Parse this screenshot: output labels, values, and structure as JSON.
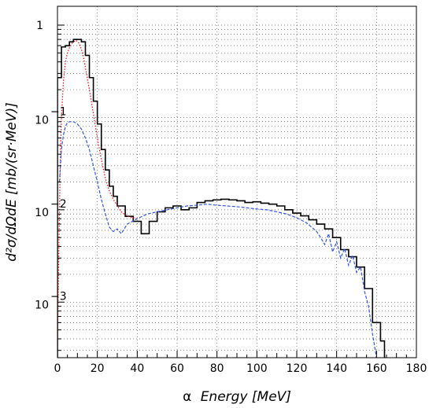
{
  "chart_data": {
    "type": "line",
    "title": "",
    "xlabel_symbol": "α",
    "xlabel_text": "Energy [MeV]",
    "ylabel": "d²σ/dΩdE [mb/(sr·MeV)]",
    "xlim": [
      0,
      180
    ],
    "ylim": [
      0.00025,
      1.6
    ],
    "yscale": "log",
    "grid": true,
    "x_ticks": [
      0,
      20,
      40,
      60,
      80,
      100,
      120,
      140,
      160,
      180
    ],
    "x_tick_labels": [
      "0",
      "20",
      "40",
      "60",
      "80",
      "100",
      "120",
      "140",
      "160",
      "180"
    ],
    "y_tick_labels": [
      {
        "value": 1,
        "base": "1",
        "exp": ""
      },
      {
        "value": 0.1,
        "base": "10",
        "exp": "−1"
      },
      {
        "value": 0.01,
        "base": "10",
        "exp": "−2"
      },
      {
        "value": 0.001,
        "base": "10",
        "exp": "−3"
      }
    ],
    "series": [
      {
        "style": "histogram",
        "color": "#000000",
        "edges": [
          0,
          2,
          4,
          6,
          8,
          10,
          12,
          14,
          16,
          18,
          20,
          22,
          24,
          26,
          28,
          30,
          34,
          38,
          42,
          46,
          50,
          54,
          58,
          62,
          66,
          70,
          74,
          78,
          82,
          86,
          90,
          94,
          98,
          102,
          106,
          110,
          114,
          118,
          122,
          126,
          130,
          134,
          138,
          142,
          146,
          150,
          154,
          158,
          162,
          164
        ],
        "values": [
          0.27,
          0.58,
          0.6,
          0.66,
          0.7,
          0.7,
          0.66,
          0.47,
          0.27,
          0.15,
          0.085,
          0.045,
          0.027,
          0.018,
          0.014,
          0.011,
          0.0085,
          0.0075,
          0.0055,
          0.0075,
          0.0095,
          0.0105,
          0.011,
          0.01,
          0.0105,
          0.012,
          0.0125,
          0.0128,
          0.013,
          0.0128,
          0.0125,
          0.012,
          0.0122,
          0.0118,
          0.0115,
          0.011,
          0.01,
          0.0092,
          0.0086,
          0.0078,
          0.007,
          0.0062,
          0.005,
          0.0037,
          0.0031,
          0.0024,
          0.0014,
          0.0006,
          0.00038
        ]
      },
      {
        "style": "dotted",
        "color": "#ff0000",
        "x": [
          0,
          0.5,
          1,
          1.5,
          2,
          3,
          4,
          5,
          6,
          7,
          8,
          9,
          10,
          11,
          12,
          13,
          14,
          16,
          18,
          20,
          22,
          24,
          26,
          28,
          30,
          32,
          35,
          40
        ],
        "y": [
          0.0003,
          0.002,
          0.01,
          0.04,
          0.1,
          0.25,
          0.4,
          0.5,
          0.57,
          0.62,
          0.66,
          0.68,
          0.67,
          0.63,
          0.55,
          0.45,
          0.35,
          0.2,
          0.11,
          0.06,
          0.035,
          0.022,
          0.016,
          0.013,
          0.011,
          0.0095,
          0.0085,
          0.008
        ]
      },
      {
        "style": "dashed",
        "color": "#3355ee",
        "x": [
          1,
          2,
          3,
          4,
          5,
          6,
          8,
          10,
          12,
          14,
          16,
          18,
          20,
          22,
          24,
          26,
          28,
          30,
          32,
          35,
          40,
          45,
          50,
          55,
          60,
          65,
          70,
          75,
          80,
          85,
          90,
          95,
          100,
          105,
          110,
          115,
          120,
          125,
          130,
          132,
          134,
          136,
          138,
          140,
          142,
          144,
          146,
          148,
          150,
          152,
          154,
          156,
          158,
          160
        ],
        "y": [
          0.02,
          0.045,
          0.065,
          0.08,
          0.088,
          0.09,
          0.09,
          0.085,
          0.075,
          0.06,
          0.045,
          0.03,
          0.02,
          0.013,
          0.009,
          0.0065,
          0.0058,
          0.0062,
          0.0055,
          0.007,
          0.008,
          0.009,
          0.0095,
          0.01,
          0.0105,
          0.011,
          0.0112,
          0.0115,
          0.0112,
          0.011,
          0.0108,
          0.0105,
          0.0102,
          0.01,
          0.0095,
          0.009,
          0.0082,
          0.0072,
          0.0058,
          0.005,
          0.0042,
          0.0055,
          0.0035,
          0.0045,
          0.003,
          0.0038,
          0.0025,
          0.0032,
          0.0021,
          0.0024,
          0.0013,
          0.0009,
          0.00045,
          0.00025
        ]
      }
    ]
  }
}
